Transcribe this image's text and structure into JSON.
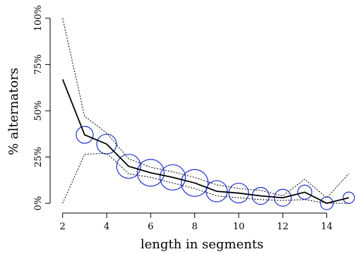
{
  "chart_data": {
    "type": "line",
    "xlabel": "length in segments",
    "ylabel": "% alternators",
    "xlim": [
      1.85,
      15.2
    ],
    "ylim": [
      -3,
      103
    ],
    "x_ticks": [
      2,
      4,
      6,
      8,
      10,
      12,
      14
    ],
    "x_tick_labels": [
      "2",
      "4",
      "6",
      "8",
      "10",
      "12",
      "14"
    ],
    "y_ticks": [
      0,
      25,
      50,
      75,
      100
    ],
    "y_tick_labels": [
      "0%",
      "25%",
      "50%",
      "75%",
      "100%"
    ],
    "grid": false,
    "legend": "none",
    "x": [
      2,
      3,
      4,
      5,
      6,
      7,
      8,
      9,
      10,
      11,
      12,
      13,
      14,
      15
    ],
    "mean": [
      67,
      37,
      32,
      20,
      16.5,
      14,
      11,
      6.5,
      5.5,
      4,
      3,
      6,
      0,
      3
    ],
    "upper": [
      100,
      47,
      38,
      24,
      19.5,
      17,
      14,
      10,
      8,
      7,
      4,
      13,
      3,
      16
    ],
    "lower": [
      0,
      26.5,
      27,
      16,
      14,
      11,
      8,
      4,
      3,
      2,
      1.5,
      2,
      0,
      0
    ],
    "bubble_sizes": [
      0,
      12,
      14,
      17,
      19,
      18,
      19,
      15,
      14,
      12,
      12,
      10,
      9,
      8
    ],
    "colors": {
      "mean": "#000000",
      "band": "#000000",
      "bubbles": "#2233cc"
    }
  }
}
